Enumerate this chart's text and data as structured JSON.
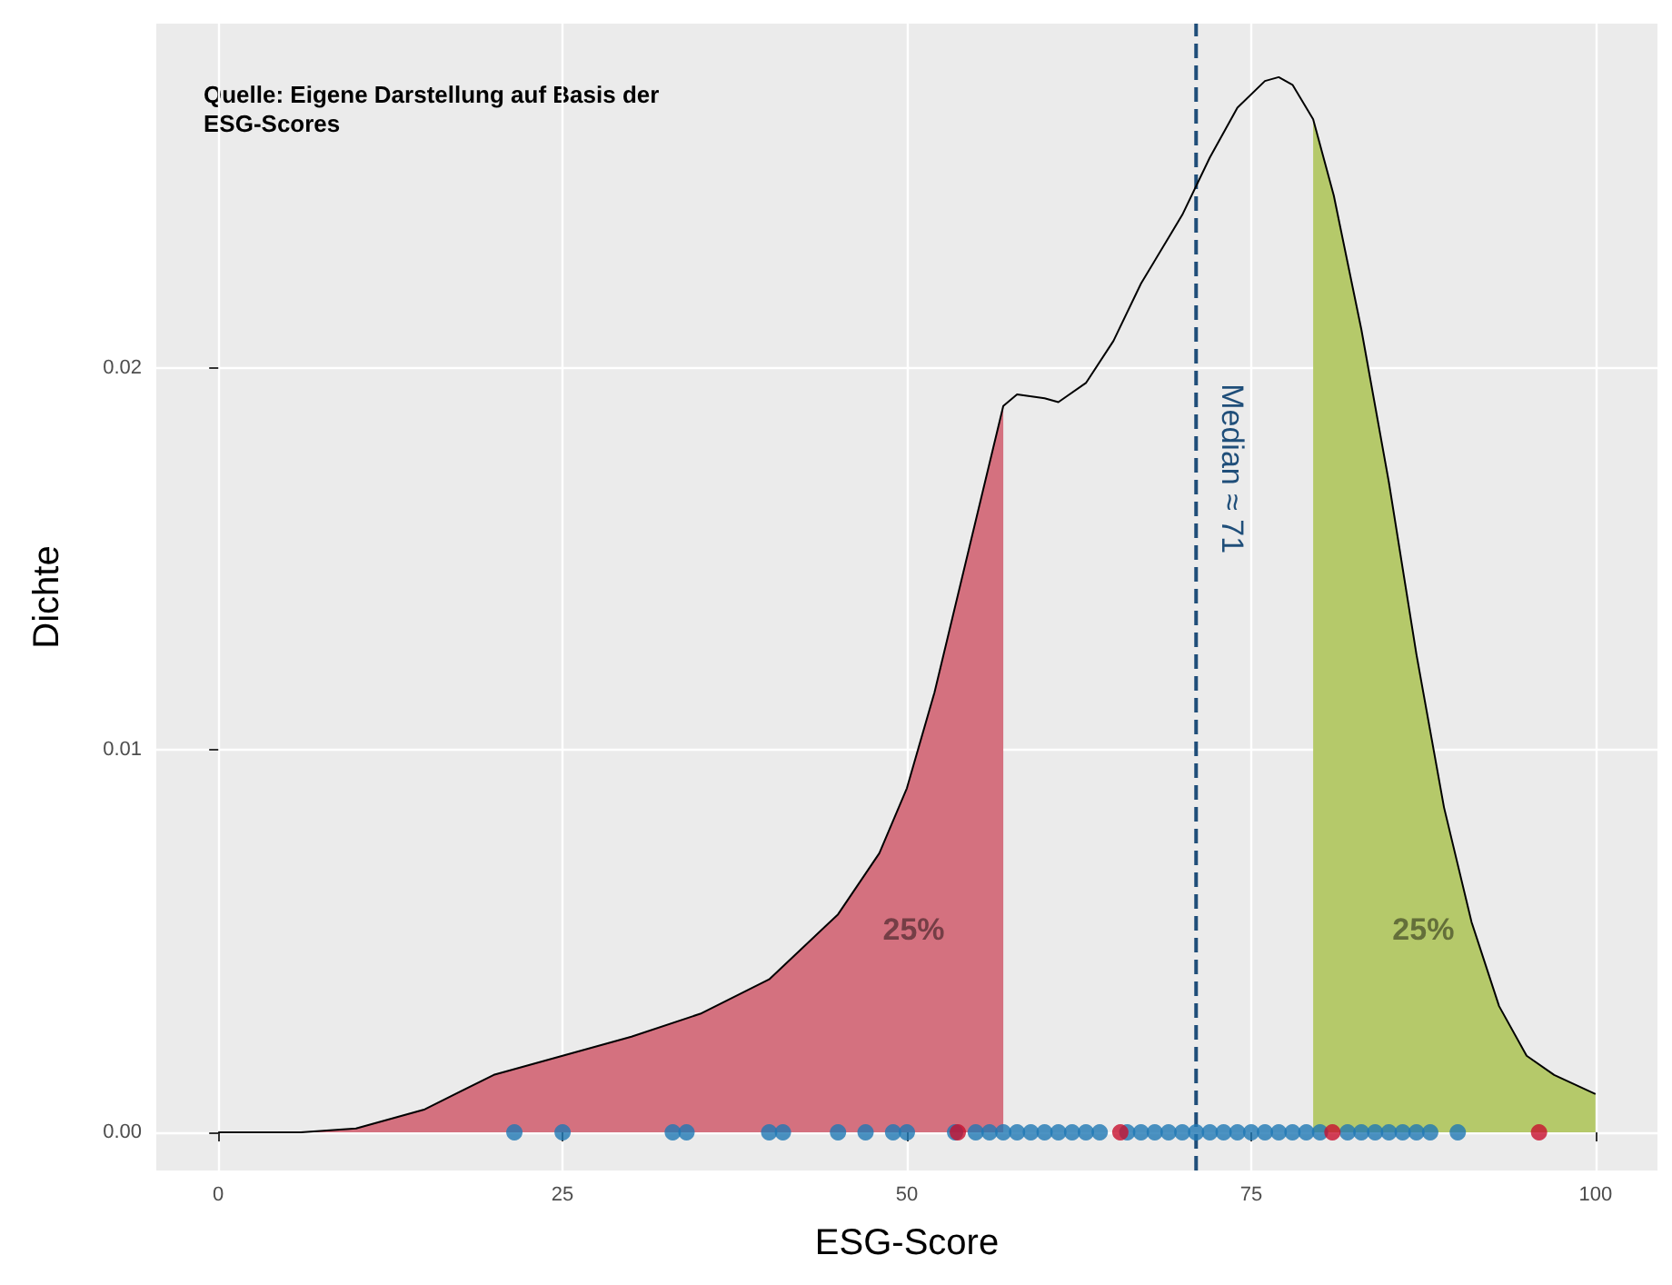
{
  "chart_data": {
    "type": "line",
    "xlabel": "ESG-Score",
    "ylabel": "Dichte",
    "xlim": [
      -4.5,
      104.5
    ],
    "xticks": [
      0,
      25,
      50,
      75,
      100
    ],
    "ylim": [
      -0.001,
      0.029
    ],
    "yticks": [
      {
        "value": 0,
        "label": "0.00"
      },
      {
        "value": 0.01,
        "label": "0.01"
      },
      {
        "value": 0.02,
        "label": "0.02"
      }
    ],
    "grid": true,
    "series": [
      {
        "type": "area",
        "color": "#d4717f",
        "x": [
          0,
          6,
          10,
          15,
          20,
          25,
          30,
          35,
          40,
          45,
          48,
          50,
          52,
          54,
          56,
          57
        ],
        "values": [
          0,
          0,
          0.0001,
          0.0006,
          0.0015,
          0.002,
          0.0025,
          0.0031,
          0.004,
          0.0057,
          0.0073,
          0.009,
          0.0115,
          0.0145,
          0.0175,
          0.019
        ]
      },
      {
        "type": "area",
        "color": "#b5c96a",
        "x": [
          79.5,
          81,
          83,
          85,
          87,
          89,
          91,
          93,
          95,
          97,
          100
        ],
        "values": [
          0.0265,
          0.0245,
          0.021,
          0.017,
          0.0125,
          0.0085,
          0.0055,
          0.0033,
          0.002,
          0.0015,
          0.001
        ]
      },
      {
        "color": "#000000",
        "marker": "none",
        "x": [
          0,
          6,
          10,
          15,
          20,
          25,
          30,
          35,
          40,
          45,
          48,
          50,
          52,
          54,
          56,
          57,
          58,
          60,
          61,
          63,
          65,
          67,
          70,
          72,
          74,
          76,
          77,
          78,
          79.5,
          81,
          83,
          85,
          87,
          89,
          91,
          93,
          95,
          97,
          100
        ],
        "values": [
          0,
          0,
          0.0001,
          0.0006,
          0.0015,
          0.002,
          0.0025,
          0.0031,
          0.004,
          0.0057,
          0.0073,
          0.009,
          0.0115,
          0.0145,
          0.0175,
          0.019,
          0.0193,
          0.0192,
          0.0191,
          0.0196,
          0.0207,
          0.0222,
          0.024,
          0.0255,
          0.0268,
          0.0275,
          0.0276,
          0.0274,
          0.0265,
          0.0245,
          0.021,
          0.017,
          0.0125,
          0.0085,
          0.0055,
          0.0033,
          0.002,
          0.0015,
          0.001
        ]
      },
      {
        "type": "scatter",
        "marker": "circle",
        "color": "#1f78b4",
        "x": [
          21.5,
          25,
          33,
          34,
          40,
          41,
          45,
          47,
          49,
          50,
          53.5,
          55,
          56,
          57,
          58,
          59,
          60,
          61,
          62,
          63,
          64,
          66,
          67,
          68,
          69,
          70,
          71,
          72,
          73,
          74,
          75,
          76,
          77,
          78,
          79,
          80,
          82,
          83,
          84,
          85,
          86,
          87,
          88,
          90
        ],
        "values": [
          0,
          0,
          0,
          0,
          0,
          0,
          0,
          0,
          0,
          0,
          0,
          0,
          0,
          0,
          0,
          0,
          0,
          0,
          0,
          0,
          0,
          0,
          0,
          0,
          0,
          0,
          0,
          0,
          0,
          0,
          0,
          0,
          0,
          0,
          0,
          0,
          0,
          0,
          0,
          0,
          0,
          0,
          0,
          0
        ]
      },
      {
        "type": "scatter",
        "marker": "circle",
        "color": "#c8102e",
        "x": [
          53.7,
          65.5,
          80.9,
          95.9
        ],
        "values": [
          0,
          0,
          0,
          0
        ]
      }
    ],
    "ref_lines": [
      {
        "axis": "x",
        "value": 71,
        "label": "Median ≈ 71",
        "color": "#1f4e79",
        "line_style": "dashed"
      }
    ],
    "annotations": [
      "Quelle: Eigene Darstellung auf Basis der ESG-Scores",
      "25%",
      "25%"
    ]
  }
}
